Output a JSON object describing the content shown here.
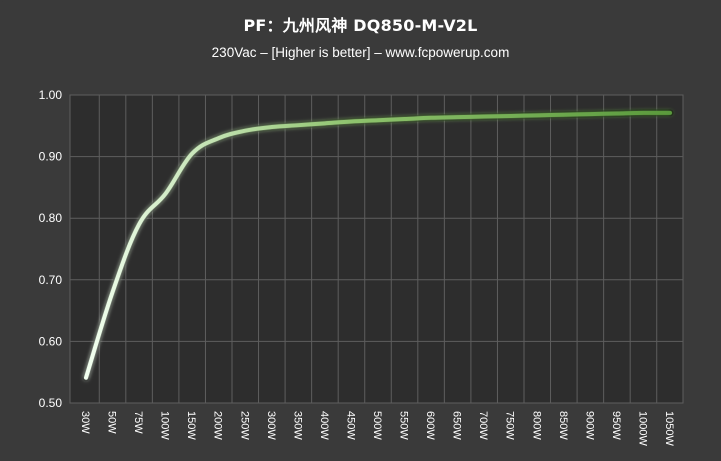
{
  "chart_data": {
    "type": "line",
    "title": "PF：九州风神 DQ850-M-V2L",
    "subtitle": "230Vac – [Higher is better] –  www.fcpowerup.com",
    "xlabel": "",
    "ylabel": "",
    "categories": [
      "30W",
      "50W",
      "75W",
      "100W",
      "150W",
      "200W",
      "250W",
      "300W",
      "350W",
      "400W",
      "450W",
      "500W",
      "550W",
      "600W",
      "650W",
      "700W",
      "750W",
      "800W",
      "850W",
      "900W",
      "950W",
      "1000W",
      "1050W"
    ],
    "y_ticks": [
      "0.50",
      "0.60",
      "0.70",
      "0.80",
      "0.90",
      "1.00"
    ],
    "ylim": [
      0.5,
      1.0
    ],
    "grid": true,
    "series": [
      {
        "values": [
          0.541,
          0.68,
          0.79,
          0.84,
          0.905,
          0.93,
          0.942,
          0.948,
          0.951,
          0.954,
          0.957,
          0.959,
          0.961,
          0.963,
          0.964,
          0.965,
          0.966,
          0.967,
          0.968,
          0.969,
          0.97,
          0.971,
          0.971
        ],
        "color_start": "#f2fff0",
        "color_end": "#5a9a3c"
      }
    ],
    "colors": {
      "background": "#3a3a3a",
      "plot_background": "#2d2d2d",
      "grid": "#5e5e5e",
      "text": "#ffffff"
    }
  }
}
